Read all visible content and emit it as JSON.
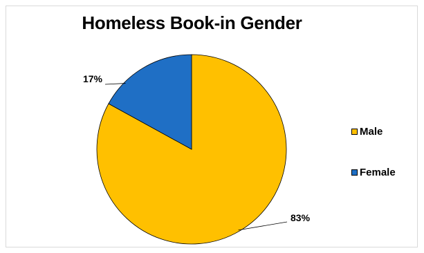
{
  "chart_data": {
    "type": "pie",
    "title": "Homeless Book-in Gender",
    "categories": [
      "Male",
      "Female"
    ],
    "values": [
      83,
      17
    ],
    "labels": [
      "83%",
      "17%"
    ],
    "colors": [
      "#FFC000",
      "#1F6FC5"
    ],
    "start_angle_deg": 0,
    "direction": "clockwise",
    "legend_position": "right"
  }
}
